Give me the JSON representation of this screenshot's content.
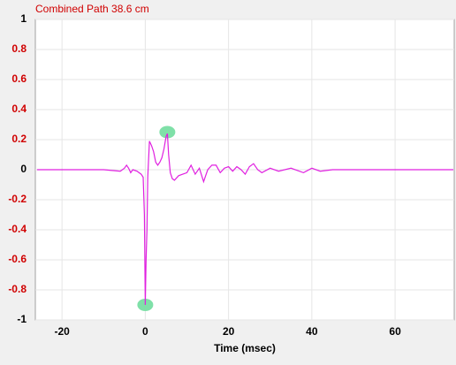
{
  "chart_data": {
    "type": "line",
    "title": "Combined   Path 38.6 cm",
    "x_label": "Time (msec)",
    "x": [
      -26,
      -20,
      -10,
      -6,
      -5,
      -4.5,
      -4,
      -3.5,
      -3,
      -2,
      -1,
      -0.5,
      -0.2,
      0,
      0.2,
      0.4,
      0.6,
      1,
      1.5,
      2,
      2.5,
      3,
      3.5,
      4,
      4.5,
      5,
      5.3,
      5.6,
      6,
      6.5,
      7,
      8,
      9,
      10,
      11,
      12,
      13,
      14,
      14.5,
      15,
      16,
      17,
      18,
      19,
      20,
      21,
      22,
      23,
      24,
      25,
      26,
      27,
      28,
      30,
      32,
      35,
      38,
      40,
      42,
      45,
      50,
      55,
      60,
      65,
      70,
      74
    ],
    "series": [
      {
        "name": "Combined",
        "color": "#e020e0",
        "values": [
          0,
          0,
          0,
          -0.01,
          0.01,
          0.03,
          0.01,
          -0.02,
          0,
          -0.01,
          -0.03,
          -0.05,
          -0.3,
          -0.9,
          -0.6,
          -0.4,
          -0.05,
          0.19,
          0.16,
          0.12,
          0.05,
          0.03,
          0.05,
          0.08,
          0.14,
          0.22,
          0.24,
          0.1,
          -0.02,
          -0.06,
          -0.07,
          -0.04,
          -0.03,
          -0.02,
          0.03,
          -0.03,
          0.01,
          -0.08,
          -0.04,
          0,
          0.03,
          0.03,
          -0.02,
          0.01,
          0.02,
          -0.01,
          0.02,
          0,
          -0.03,
          0.02,
          0.04,
          0,
          -0.02,
          0.01,
          -0.01,
          0.01,
          -0.02,
          0.01,
          -0.01,
          0,
          0,
          0,
          0,
          0,
          0,
          0
        ]
      }
    ],
    "markers": [
      {
        "x": 0,
        "y": -0.9
      },
      {
        "x": 5.3,
        "y": 0.25
      }
    ],
    "marker_color": "#7fe0a8",
    "xlim": [
      -26.4,
      74.2
    ],
    "ylim": [
      -1,
      1
    ],
    "xticks": [
      -20,
      0,
      20,
      40,
      60
    ],
    "yticks": [
      -1,
      -0.8,
      -0.6,
      -0.4,
      -0.2,
      0,
      0.2,
      0.4,
      0.6,
      0.8,
      1
    ],
    "grid": true
  }
}
